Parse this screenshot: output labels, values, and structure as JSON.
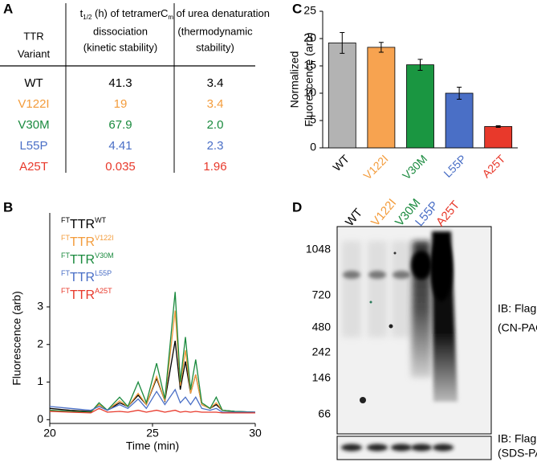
{
  "panel_labels": [
    "A",
    "B",
    "C",
    "D"
  ],
  "table": {
    "header": [
      {
        "lines": [
          "TTR",
          "Variant"
        ]
      },
      {
        "symbol": "t",
        "sub": "1/2",
        "rest": " (h) of tetramer",
        "lines": [
          "dissociation",
          "(kinetic stability)"
        ]
      },
      {
        "symbol": "C",
        "sub": "m",
        "rest": " of urea denaturation",
        "lines": [
          "(thermodynamic",
          "stability)"
        ]
      }
    ],
    "rows": [
      {
        "color": "#000000",
        "cells": [
          "WT",
          "41.3",
          "3.4"
        ]
      },
      {
        "color": "#f39c3c",
        "cells": [
          "V122I",
          "19",
          "3.4"
        ]
      },
      {
        "color": "#1a8a3e",
        "cells": [
          "V30M",
          "67.9",
          "2.0"
        ]
      },
      {
        "color": "#4a6fc6",
        "cells": [
          "L55P",
          "4.41",
          "2.3"
        ]
      },
      {
        "color": "#e8392b",
        "cells": [
          "A25T",
          "0.035",
          "1.96"
        ]
      }
    ]
  },
  "chart_data": [
    {
      "type": "line",
      "ylabel": "Fluorescence (arb)",
      "xlabel": "Time (min)",
      "x": [
        20,
        21,
        22,
        22.4,
        22.8,
        23.4,
        23.8,
        24.3,
        24.7,
        25.2,
        25.6,
        26.1,
        26.35,
        26.6,
        26.85,
        27.1,
        27.4,
        27.8,
        28.1,
        28.4,
        29,
        30
      ],
      "xlim": [
        20,
        30
      ],
      "xticks": [
        20,
        25,
        30
      ],
      "ylim": [
        -0.1,
        5.5
      ],
      "yticks": [
        0,
        1,
        2,
        3
      ],
      "series": [
        {
          "name": "TTR",
          "prefix": "FT",
          "suffix": "WT",
          "color": "#000000",
          "values": [
            0.3,
            0.25,
            0.22,
            0.4,
            0.25,
            0.45,
            0.35,
            0.65,
            0.4,
            1.1,
            0.5,
            2.1,
            0.8,
            1.55,
            0.7,
            1.2,
            0.4,
            0.3,
            0.4,
            0.25,
            0.22,
            0.2
          ]
        },
        {
          "name": "TTR",
          "prefix": "FT",
          "suffix": "V122I",
          "color": "#f39c3c",
          "values": [
            0.25,
            0.22,
            0.2,
            0.4,
            0.25,
            0.5,
            0.35,
            0.7,
            0.4,
            1.15,
            0.5,
            2.9,
            0.9,
            1.85,
            0.7,
            1.2,
            0.4,
            0.3,
            0.45,
            0.25,
            0.2,
            0.2
          ]
        },
        {
          "name": "TTR",
          "prefix": "FT",
          "suffix": "V30M",
          "color": "#1a8a3e",
          "values": [
            0.25,
            0.22,
            0.2,
            0.45,
            0.25,
            0.6,
            0.35,
            1.0,
            0.45,
            1.5,
            0.55,
            3.4,
            1.0,
            2.2,
            0.8,
            1.6,
            0.45,
            0.3,
            0.6,
            0.25,
            0.22,
            0.2
          ]
        },
        {
          "name": "TTR",
          "prefix": "FT",
          "suffix": "L55P",
          "color": "#4a6fc6",
          "values": [
            0.35,
            0.3,
            0.25,
            0.35,
            0.25,
            0.4,
            0.3,
            0.55,
            0.3,
            0.75,
            0.4,
            0.8,
            0.45,
            0.6,
            0.4,
            0.6,
            0.3,
            0.25,
            0.3,
            0.2,
            0.2,
            0.2
          ]
        },
        {
          "name": "TTR",
          "prefix": "FT",
          "suffix": "A25T",
          "color": "#e8392b",
          "values": [
            0.22,
            0.2,
            0.18,
            0.3,
            0.2,
            0.22,
            0.2,
            0.25,
            0.2,
            0.25,
            0.2,
            0.25,
            0.2,
            0.22,
            0.2,
            0.22,
            0.2,
            0.2,
            0.2,
            0.18,
            0.18,
            0.18
          ]
        }
      ]
    },
    {
      "type": "bar",
      "ylabel": [
        "Normalized",
        "Fluorescence (arb)"
      ],
      "categories": [
        "WT",
        "V122I",
        "V30M",
        "L55P",
        "A25T"
      ],
      "values": [
        19.2,
        18.4,
        15.2,
        10.0,
        3.9
      ],
      "errors": [
        1.9,
        0.9,
        1.0,
        1.1,
        0.15
      ],
      "colors": [
        "#b3b3b3",
        "#f7a350",
        "#1a9641",
        "#4a6fc6",
        "#e8392b"
      ],
      "label_colors": [
        "#000000",
        "#f39c3c",
        "#1a8a3e",
        "#4a6fc6",
        "#e8392b"
      ],
      "ylim": [
        0,
        25
      ],
      "yticks": [
        0,
        5,
        10,
        15,
        20,
        25
      ]
    }
  ],
  "gel": {
    "lanes": [
      {
        "label": "WT",
        "color": "#000000"
      },
      {
        "label": "V122I",
        "color": "#f39c3c"
      },
      {
        "label": "V30M",
        "color": "#1a8a3e"
      },
      {
        "label": "L55P",
        "color": "#4a6fc6"
      },
      {
        "label": "A25T",
        "color": "#e8392b"
      }
    ],
    "markers": [
      1048,
      720,
      480,
      242,
      146,
      66
    ],
    "annotations": [
      [
        "IB: Flag",
        "(CN-PAGE)"
      ],
      [
        "IB: Flag",
        "(SDS-PAGE)"
      ]
    ]
  }
}
